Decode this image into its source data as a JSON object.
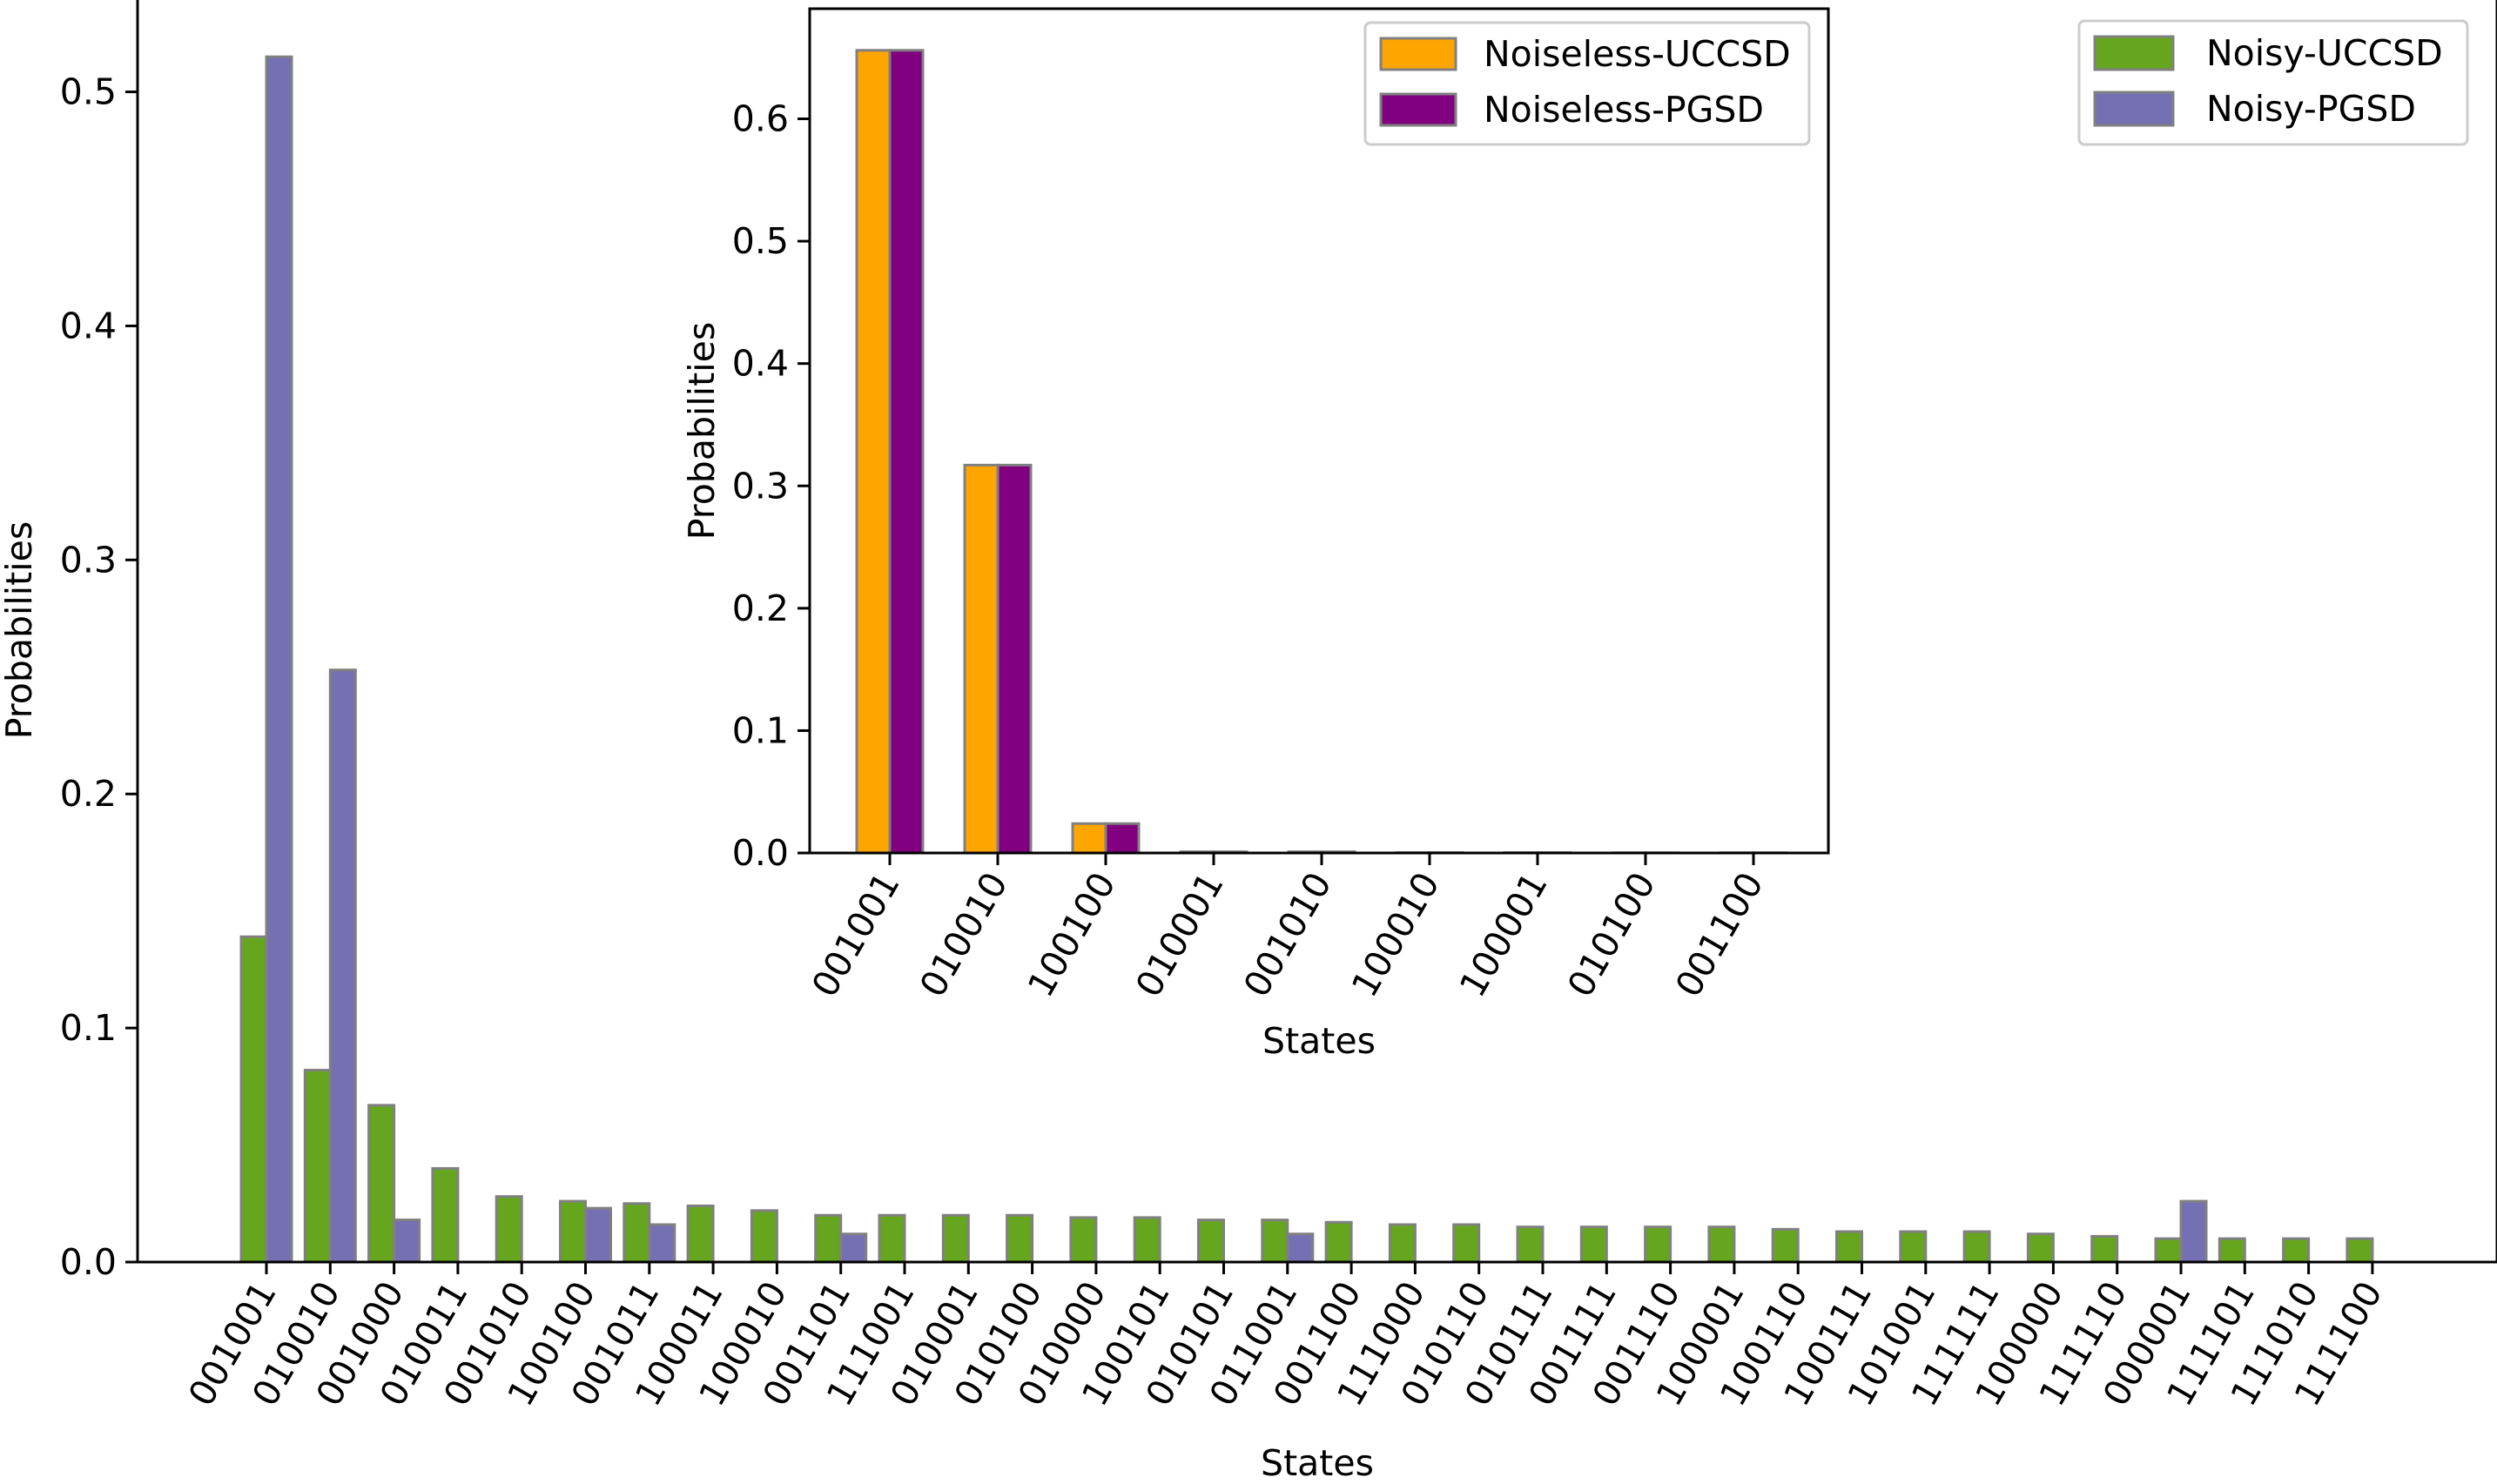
{
  "chart_data": [
    {
      "id": "main",
      "type": "bar",
      "xlabel": "States",
      "ylabel": "Probabilities",
      "ylim": [
        0,
        0.54
      ],
      "yticks": [
        0.0,
        0.1,
        0.2,
        0.3,
        0.4,
        0.5
      ],
      "ytick_labels": [
        "0.0",
        "0.1",
        "0.2",
        "0.3",
        "0.4",
        "0.5"
      ],
      "legend_position": "top-right",
      "categories": [
        "001001",
        "010010",
        "001000",
        "010011",
        "001010",
        "100100",
        "001011",
        "100011",
        "100010",
        "001101",
        "111001",
        "010001",
        "010100",
        "010000",
        "100101",
        "010101",
        "011001",
        "001100",
        "111000",
        "010110",
        "010111",
        "001111",
        "001110",
        "100001",
        "100110",
        "100111",
        "101001",
        "111111",
        "100000",
        "111110",
        "000001",
        "111101",
        "111010",
        "111100"
      ],
      "series": [
        {
          "name": "Noisy-UCCSD",
          "color": "#66a61e",
          "values": [
            0.139,
            0.082,
            0.067,
            0.04,
            0.028,
            0.026,
            0.025,
            0.024,
            0.022,
            0.02,
            0.02,
            0.02,
            0.02,
            0.019,
            0.019,
            0.018,
            0.018,
            0.017,
            0.016,
            0.016,
            0.015,
            0.015,
            0.015,
            0.015,
            0.014,
            0.013,
            0.013,
            0.013,
            0.012,
            0.011,
            0.01,
            0.01,
            0.01,
            0.01
          ]
        },
        {
          "name": "Noisy-PGSD",
          "color": "#7570b3",
          "values": [
            0.515,
            0.253,
            0.018,
            0,
            0,
            0.023,
            0.016,
            0,
            0,
            0.012,
            0,
            0,
            0,
            0,
            0,
            0,
            0.012,
            0,
            0,
            0,
            0,
            0,
            0,
            0,
            0,
            0,
            0,
            0,
            0,
            0,
            0.026,
            0,
            0,
            0
          ]
        }
      ]
    },
    {
      "id": "inset",
      "type": "bar",
      "xlabel": "States",
      "ylabel": "Probabilities",
      "ylim": [
        0,
        0.69
      ],
      "yticks": [
        0.0,
        0.1,
        0.2,
        0.3,
        0.4,
        0.5,
        0.6
      ],
      "ytick_labels": [
        "0.0",
        "0.1",
        "0.2",
        "0.3",
        "0.4",
        "0.5",
        "0.6"
      ],
      "legend_position": "top-right",
      "categories": [
        "001001",
        "010010",
        "100100",
        "010001",
        "001010",
        "100010",
        "100001",
        "010100",
        "001100"
      ],
      "series": [
        {
          "name": "Noiseless-UCCSD",
          "color": "#ffa500",
          "values": [
            0.656,
            0.317,
            0.024,
            0.001,
            0.001,
            0.0003,
            0.0003,
            0.0002,
            0.0002
          ]
        },
        {
          "name": "Noiseless-PGSD",
          "color": "#800080",
          "values": [
            0.656,
            0.317,
            0.024,
            0.001,
            0.001,
            0.0003,
            0.0003,
            0.0002,
            0.0002
          ]
        }
      ]
    }
  ]
}
